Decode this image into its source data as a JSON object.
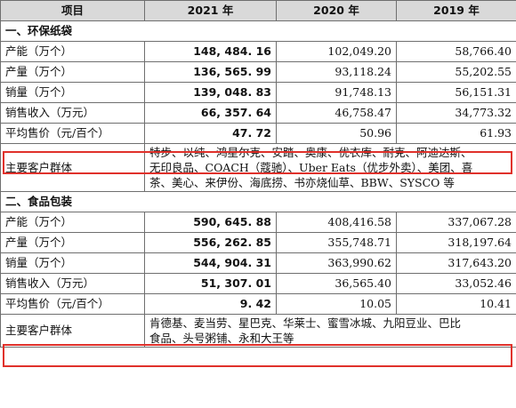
{
  "header": {
    "item": "项目",
    "y2021": "2021 年",
    "y2020": "2020 年",
    "y2019": "2019 年"
  },
  "sections": [
    {
      "title": "一、环保纸袋",
      "rows": [
        {
          "label": "产能（万个）",
          "v2021": "148, 484. 16",
          "v2020": "102,049.20",
          "v2019": "58,766.40"
        },
        {
          "label": "产量（万个）",
          "v2021": "136, 565. 99",
          "v2020": "93,118.24",
          "v2019": "55,202.55"
        },
        {
          "label": "销量（万个）",
          "v2021": "139, 048. 83",
          "v2020": "91,748.13",
          "v2019": "56,151.31"
        },
        {
          "label": "销售收入（万元）",
          "v2021": "66, 357. 64",
          "v2020": "46,758.47",
          "v2019": "34,773.32"
        },
        {
          "label": "平均售价（元/百个）",
          "v2021": "47. 72",
          "v2020": "50.96",
          "v2019": "61.93"
        }
      ],
      "customers_label": "主要客户群体",
      "customers_lines": [
        "特步、以纯、鸿星尔克、安踏、奥康、优衣库、耐克、阿迪达斯、",
        "无印良品、COACH（蔻驰）、Uber Eats（优步外卖）、美团、喜",
        "茶、美心、来伊份、海底捞、书亦烧仙草、BBW、SYSCO 等"
      ]
    },
    {
      "title": "二、食品包装",
      "rows": [
        {
          "label": "产能（万个）",
          "v2021": "590, 645. 88",
          "v2020": "408,416.58",
          "v2019": "337,067.28"
        },
        {
          "label": "产量（万个）",
          "v2021": "556, 262. 85",
          "v2020": "355,748.71",
          "v2019": "318,197.64"
        },
        {
          "label": "销量（万个）",
          "v2021": "544, 904. 31",
          "v2020": "363,990.62",
          "v2019": "317,643.20"
        },
        {
          "label": "销售收入（万元）",
          "v2021": "51, 307. 01",
          "v2020": "36,565.40",
          "v2019": "33,052.46"
        },
        {
          "label": "平均售价（元/百个）",
          "v2021": "9. 42",
          "v2020": "10.05",
          "v2019": "10.41"
        }
      ],
      "customers_label": "主要客户群体",
      "customers_lines": [
        "肯德基、麦当劳、星巴克、华莱士、蜜雪冰城、九阳豆业、巴比",
        "食品、头号粥铺、永和大王等"
      ]
    }
  ],
  "highlight_color": "#e0312b"
}
